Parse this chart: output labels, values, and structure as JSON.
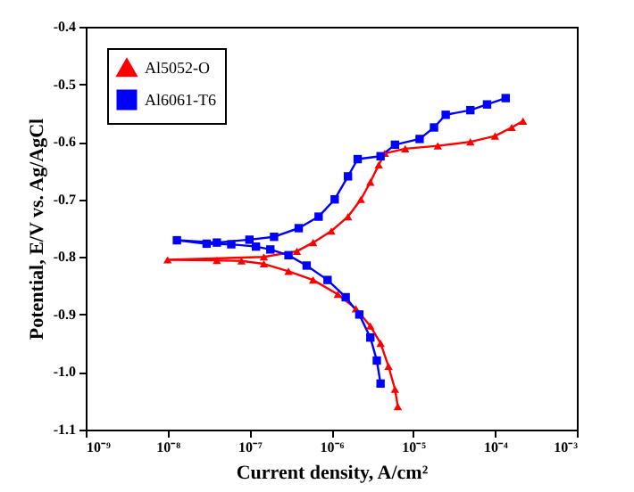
{
  "chart_data": {
    "type": "line",
    "xlabel": "Current density, A/cm²",
    "ylabel": "Potential, E/V vs. Ag/AgCl",
    "log": "x",
    "grid": false,
    "legend": "top left",
    "line_style": "solid",
    "xlim": [
      1e-09,
      0.001
    ],
    "xticks": [
      {
        "value": 1e-09,
        "label": "10⁻⁹"
      },
      {
        "value": 1e-08,
        "label": "10⁻⁸"
      },
      {
        "value": 1e-07,
        "label": "10⁻⁷"
      },
      {
        "value": 1e-06,
        "label": "10⁻⁶"
      },
      {
        "value": 1e-05,
        "label": "10⁻⁵"
      },
      {
        "value": 0.0001,
        "label": "10⁻⁴"
      },
      {
        "value": 0.001,
        "label": "10⁻³"
      }
    ],
    "ylim": [
      -1.1,
      -0.4
    ],
    "yticks": [
      {
        "value": -1.1,
        "label": "-1.1"
      },
      {
        "value": -1,
        "label": "-1.0"
      },
      {
        "value": -0.9,
        "label": "-0.9"
      },
      {
        "value": -0.8,
        "label": "-0.8"
      },
      {
        "value": -0.7,
        "label": "-0.7"
      },
      {
        "value": -0.6,
        "label": "-0.6"
      },
      {
        "value": -0.5,
        "label": "-0.5"
      },
      {
        "value": -0.4,
        "label": "-0.4"
      }
    ],
    "series": [
      {
        "name": "Al5052-O",
        "color": "#ff0000",
        "marker": "triangle",
        "x": [
          6.5e-06,
          6e-06,
          5e-06,
          4e-06,
          3e-06,
          2e-06,
          1.2e-06,
          6e-07,
          3e-07,
          1.5e-07,
          8e-08,
          4e-08,
          1e-08,
          1.5e-07,
          3.8e-07,
          6e-07,
          1e-06,
          1.6e-06,
          2.3e-06,
          3e-06,
          3.8e-06,
          4.5e-06,
          8e-06,
          2e-05,
          5e-05,
          0.0001,
          0.00016,
          0.00022
        ],
        "values": [
          -1.06,
          -1.03,
          -0.99,
          -0.95,
          -0.92,
          -0.89,
          -0.865,
          -0.84,
          -0.825,
          -0.812,
          -0.807,
          -0.806,
          -0.805,
          -0.8,
          -0.79,
          -0.775,
          -0.755,
          -0.73,
          -0.7,
          -0.67,
          -0.64,
          -0.62,
          -0.612,
          -0.607,
          -0.6,
          -0.59,
          -0.575,
          -0.564
        ]
      },
      {
        "name": "Al6061-T6",
        "color": "#0000ff",
        "marker": "square",
        "x": [
          4e-06,
          3.6e-06,
          3e-06,
          2.2e-06,
          1.5e-06,
          9e-07,
          5e-07,
          3e-07,
          1.8e-07,
          1.2e-07,
          6e-08,
          3e-08,
          1.3e-08,
          4e-08,
          1e-07,
          2e-07,
          4e-07,
          7e-07,
          1.1e-06,
          1.6e-06,
          2.1e-06,
          4e-06,
          6e-06,
          1.2e-05,
          1.8e-05,
          2.5e-05,
          5e-05,
          8e-05,
          0.000135
        ],
        "values": [
          -1.02,
          -0.98,
          -0.94,
          -0.9,
          -0.87,
          -0.84,
          -0.815,
          -0.797,
          -0.787,
          -0.782,
          -0.778,
          -0.777,
          -0.771,
          -0.775,
          -0.77,
          -0.765,
          -0.75,
          -0.73,
          -0.7,
          -0.66,
          -0.63,
          -0.625,
          -0.605,
          -0.595,
          -0.575,
          -0.553,
          -0.545,
          -0.535,
          -0.524
        ]
      }
    ]
  }
}
